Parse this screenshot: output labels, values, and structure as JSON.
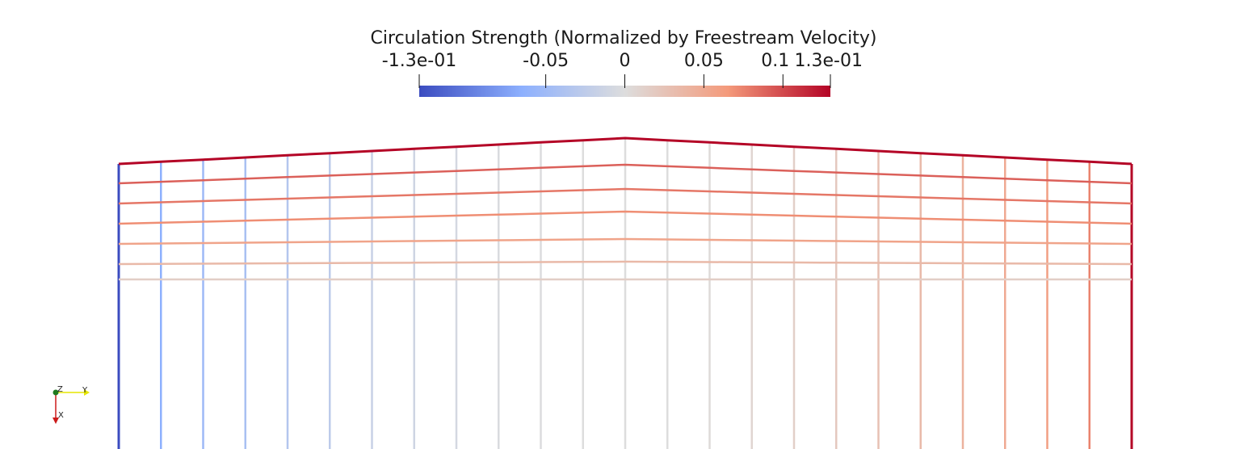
{
  "chart_data": {
    "type": "heatmap",
    "colorbar": {
      "title": "Circulation Strength (Normalized by Freestream Velocity)",
      "range": [
        -0.13,
        0.13
      ],
      "colormap": "cool-to-warm",
      "ticks": [
        {
          "value": -0.13,
          "label": "-1.3e-01"
        },
        {
          "value": -0.05,
          "label": "-0.05"
        },
        {
          "value": 0,
          "label": "0"
        },
        {
          "value": 0.05,
          "label": "0.05"
        },
        {
          "value": 0.1,
          "label": "0.1"
        },
        {
          "value": 0.13,
          "label": "1.3e-01"
        }
      ],
      "colors": {
        "low": "#3b4cc0",
        "mid": "#dddddd",
        "high": "#b40426"
      }
    },
    "mesh": {
      "spanwise_stations": 25,
      "chordwise_panels": 7,
      "swept_leading_edge": true,
      "circulation": {
        "spanwise_lines": [
          -0.13,
          -0.065,
          -0.052,
          -0.042,
          -0.033,
          -0.026,
          -0.018,
          -0.012,
          -0.007,
          -0.003,
          -0.001,
          0.0,
          0.0,
          0.0,
          0.003,
          0.008,
          0.014,
          0.02,
          0.027,
          0.034,
          0.042,
          0.05,
          0.06,
          0.075,
          0.13
        ],
        "chordwise_lines": [
          0.13,
          0.09,
          0.08,
          0.07,
          0.055,
          0.035,
          0.015,
          0.0
        ]
      }
    }
  },
  "orientation_axes": {
    "labels": {
      "z": "Z",
      "y": "Y",
      "x": "X"
    },
    "colors": {
      "z": "#1f7a1f",
      "y": "#e6e600",
      "x": "#cc1a1a"
    }
  }
}
